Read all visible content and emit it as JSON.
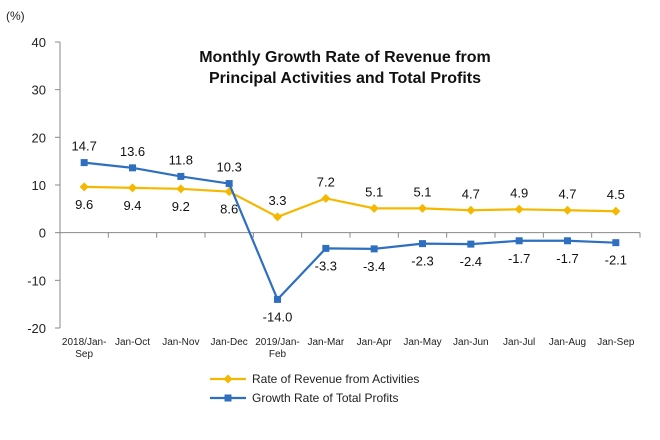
{
  "chart_data": {
    "type": "line",
    "title": [
      "Monthly Growth Rate of Revenue from",
      "Principal Activities  and Total Profits"
    ],
    "unit": "(%)",
    "ylim": [
      -20,
      40
    ],
    "yticks": [
      40,
      30,
      20,
      10,
      0,
      -10,
      -20
    ],
    "categories": [
      [
        "2018/Jan-",
        "Sep"
      ],
      [
        "Jan-Oct"
      ],
      [
        "Jan-Nov"
      ],
      [
        "Jan-Dec"
      ],
      [
        "2019/Jan-",
        "Feb"
      ],
      [
        "Jan-Mar"
      ],
      [
        "Jan-Apr"
      ],
      [
        "Jan-May"
      ],
      [
        "Jan-Jun"
      ],
      [
        "Jan-Jul"
      ],
      [
        "Jan-Aug"
      ],
      [
        "Jan-Sep"
      ]
    ],
    "series": [
      {
        "name": "Rate of Revenue from Activities",
        "color": "#F5B800",
        "marker": "diamond",
        "values": [
          9.6,
          9.4,
          9.2,
          8.6,
          3.3,
          7.2,
          5.1,
          5.1,
          4.7,
          4.9,
          4.7,
          4.5
        ],
        "labels": [
          "9.6",
          "9.4",
          "9.2",
          "8.6",
          "3.3",
          "7.2",
          "5.1",
          "5.1",
          "4.7",
          "4.9",
          "4.7",
          "4.5"
        ]
      },
      {
        "name": "Growth Rate of Total Profits",
        "color": "#2E6FC0",
        "marker": "square",
        "values": [
          14.7,
          13.6,
          11.8,
          10.3,
          -14.0,
          -3.3,
          -3.4,
          -2.3,
          -2.4,
          -1.7,
          -1.7,
          -2.1
        ],
        "labels": [
          "14.7",
          "13.6",
          "11.8",
          "10.3",
          "-14.0",
          "-3.3",
          "-3.4",
          "-2.3",
          "-2.4",
          "-1.7",
          "-1.7",
          "-2.1"
        ]
      }
    ],
    "grid": false,
    "legend": "bottom"
  }
}
